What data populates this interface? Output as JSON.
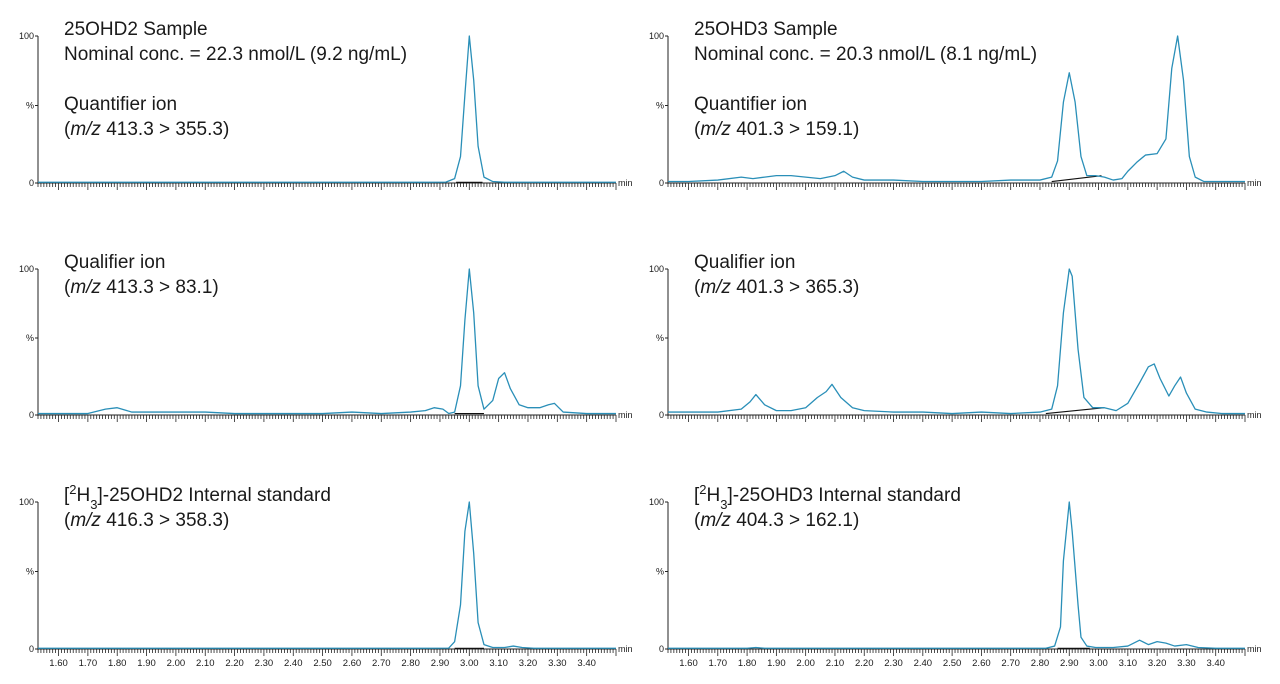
{
  "chart_data": [
    {
      "type": "line",
      "title": "25OHD2 Sample",
      "annotations": [
        "25OHD2 Sample",
        "Nominal conc. = 22.3 nmol/L (9.2 ng/mL)",
        "Quantifier ion",
        "(m/z 413.3 > 355.3)"
      ],
      "ylabel": "%",
      "yticks": [
        "100",
        "%",
        "0"
      ],
      "xunit": "min",
      "xlim": [
        1.53,
        3.5
      ],
      "ylim": [
        0,
        100
      ],
      "x": [
        1.53,
        1.7,
        1.9,
        2.1,
        2.3,
        2.5,
        2.7,
        2.85,
        2.92,
        2.95,
        2.97,
        2.985,
        3.0,
        3.015,
        3.03,
        3.05,
        3.08,
        3.12,
        3.2,
        3.3,
        3.5
      ],
      "y": [
        0.5,
        0.5,
        0.5,
        0.5,
        0.5,
        0.5,
        0.5,
        0.5,
        0.6,
        3,
        18,
        60,
        100,
        70,
        25,
        4,
        1,
        0.5,
        0.5,
        0.5,
        0.5
      ],
      "baseline": [
        [
          2.955,
          0.5
        ],
        [
          3.045,
          0.5
        ]
      ]
    },
    {
      "type": "line",
      "title": "25OHD3 Sample",
      "annotations": [
        "25OHD3 Sample",
        "Nominal conc. = 20.3 nmol/L (8.1 ng/mL)",
        "Quantifier ion",
        "(m/z 401.3 > 159.1)"
      ],
      "ylabel": "%",
      "yticks": [
        "100",
        "%",
        "0"
      ],
      "xunit": "min",
      "xlim": [
        1.53,
        3.5
      ],
      "ylim": [
        0,
        100
      ],
      "x": [
        1.53,
        1.6,
        1.7,
        1.78,
        1.82,
        1.86,
        1.9,
        1.95,
        2.0,
        2.05,
        2.1,
        2.13,
        2.16,
        2.2,
        2.3,
        2.4,
        2.5,
        2.6,
        2.7,
        2.8,
        2.84,
        2.86,
        2.88,
        2.9,
        2.92,
        2.94,
        2.96,
        2.99,
        3.02,
        3.05,
        3.08,
        3.1,
        3.13,
        3.16,
        3.2,
        3.23,
        3.25,
        3.27,
        3.29,
        3.31,
        3.33,
        3.36,
        3.4,
        3.45,
        3.5
      ],
      "y": [
        1,
        1,
        2,
        4,
        3,
        4,
        5,
        5,
        4,
        3,
        5,
        8,
        4,
        2,
        2,
        1,
        1,
        1,
        2,
        2,
        4,
        15,
        55,
        75,
        55,
        18,
        5,
        5,
        4,
        2,
        3,
        8,
        14,
        19,
        20,
        30,
        78,
        100,
        70,
        18,
        4,
        1,
        1,
        1,
        1
      ],
      "baseline": [
        [
          2.84,
          1
        ],
        [
          3.01,
          5
        ]
      ]
    },
    {
      "type": "line",
      "title": "Qualifier ion",
      "annotations": [
        "Qualifier ion",
        "(m/z 413.3 > 83.1)"
      ],
      "ylabel": "%",
      "yticks": [
        "100",
        "%",
        "0"
      ],
      "xunit": "min",
      "xlim": [
        1.53,
        3.5
      ],
      "ylim": [
        0,
        100
      ],
      "x": [
        1.53,
        1.6,
        1.7,
        1.76,
        1.8,
        1.85,
        1.9,
        2.0,
        2.1,
        2.2,
        2.3,
        2.4,
        2.5,
        2.6,
        2.7,
        2.8,
        2.85,
        2.88,
        2.91,
        2.93,
        2.95,
        2.97,
        2.985,
        3.0,
        3.015,
        3.03,
        3.05,
        3.08,
        3.1,
        3.12,
        3.14,
        3.17,
        3.2,
        3.24,
        3.27,
        3.29,
        3.32,
        3.4,
        3.5
      ],
      "y": [
        1,
        1,
        1,
        4,
        5,
        2,
        2,
        2,
        2,
        1,
        1,
        1,
        1,
        2,
        1,
        2,
        3,
        5,
        4,
        1,
        2,
        20,
        65,
        100,
        70,
        20,
        4,
        10,
        25,
        29,
        18,
        7,
        5,
        5,
        7,
        8,
        2,
        1,
        1
      ],
      "baseline": [
        [
          2.95,
          1
        ],
        [
          3.05,
          1
        ]
      ]
    },
    {
      "type": "line",
      "title": "Qualifier ion",
      "annotations": [
        "Qualifier ion",
        "(m/z 401.3 > 365.3)"
      ],
      "ylabel": "%",
      "yticks": [
        "100",
        "%",
        "0"
      ],
      "xunit": "min",
      "xlim": [
        1.53,
        3.5
      ],
      "ylim": [
        0,
        100
      ],
      "x": [
        1.53,
        1.6,
        1.7,
        1.78,
        1.81,
        1.83,
        1.86,
        1.9,
        1.95,
        2.0,
        2.04,
        2.07,
        2.09,
        2.12,
        2.16,
        2.2,
        2.3,
        2.4,
        2.5,
        2.6,
        2.7,
        2.8,
        2.84,
        2.86,
        2.88,
        2.9,
        2.91,
        2.93,
        2.95,
        2.98,
        3.02,
        3.06,
        3.1,
        3.14,
        3.17,
        3.19,
        3.21,
        3.24,
        3.26,
        3.28,
        3.3,
        3.33,
        3.37,
        3.42,
        3.5
      ],
      "y": [
        2,
        2,
        2,
        4,
        9,
        14,
        7,
        3,
        3,
        5,
        12,
        16,
        21,
        12,
        5,
        3,
        2,
        2,
        1,
        2,
        1,
        2,
        4,
        20,
        70,
        100,
        95,
        45,
        12,
        5,
        5,
        3,
        8,
        22,
        33,
        35,
        25,
        13,
        20,
        26,
        15,
        4,
        2,
        1,
        1
      ],
      "baseline": [
        [
          2.82,
          1
        ],
        [
          3.02,
          5
        ]
      ]
    },
    {
      "type": "line",
      "title": "[2H3]-25OHD2 Internal standard",
      "annotations": [
        "[2H3]-25OHD2 Internal standard",
        "(m/z 416.3 > 358.3)"
      ],
      "ylabel": "%",
      "yticks": [
        "100",
        "%",
        "0"
      ],
      "xunit": "min",
      "xlim": [
        1.53,
        3.5
      ],
      "ylim": [
        0,
        100
      ],
      "x": [
        1.53,
        1.7,
        1.9,
        2.1,
        2.3,
        2.5,
        2.7,
        2.85,
        2.93,
        2.95,
        2.97,
        2.985,
        3.0,
        3.015,
        3.03,
        3.05,
        3.08,
        3.12,
        3.15,
        3.18,
        3.22,
        3.3,
        3.5
      ],
      "y": [
        0.5,
        0.5,
        0.5,
        0.5,
        0.5,
        0.5,
        0.5,
        0.5,
        0.6,
        5,
        30,
        80,
        100,
        65,
        18,
        3,
        1,
        1,
        2,
        1,
        0.5,
        0.5,
        0.5
      ],
      "baseline": [
        [
          2.95,
          0.5
        ],
        [
          3.05,
          0.5
        ]
      ]
    },
    {
      "type": "line",
      "title": "[2H3]-25OHD3 Internal standard",
      "annotations": [
        "[2H3]-25OHD3 Internal standard",
        "(m/z 404.3 > 162.1)"
      ],
      "ylabel": "%",
      "yticks": [
        "100",
        "%",
        "0"
      ],
      "xunit": "min",
      "xlim": [
        1.53,
        3.5
      ],
      "ylim": [
        0,
        100
      ],
      "x": [
        1.53,
        1.8,
        1.83,
        1.86,
        2.0,
        2.3,
        2.6,
        2.82,
        2.85,
        2.87,
        2.88,
        2.9,
        2.91,
        2.93,
        2.94,
        2.96,
        2.99,
        3.05,
        3.1,
        3.14,
        3.17,
        3.2,
        3.23,
        3.26,
        3.3,
        3.34,
        3.4,
        3.5
      ],
      "y": [
        0.5,
        0.5,
        1,
        0.5,
        0.5,
        0.5,
        0.5,
        0.5,
        2,
        15,
        60,
        100,
        80,
        30,
        8,
        2,
        1,
        1,
        2,
        6,
        3,
        5,
        4,
        2,
        3,
        1,
        0.5,
        0.5
      ],
      "baseline": [
        [
          2.86,
          0.5
        ],
        [
          2.97,
          0.5
        ]
      ]
    }
  ],
  "x_ticks": [
    "1.60",
    "1.70",
    "1.80",
    "1.90",
    "2.00",
    "2.10",
    "2.20",
    "2.30",
    "2.40",
    "2.50",
    "2.60",
    "2.70",
    "2.80",
    "2.90",
    "3.00",
    "3.10",
    "3.20",
    "3.30",
    "3.40"
  ],
  "colors": {
    "trace": "#2a8fb8",
    "baseline": "#111111",
    "axis": "#222222"
  }
}
